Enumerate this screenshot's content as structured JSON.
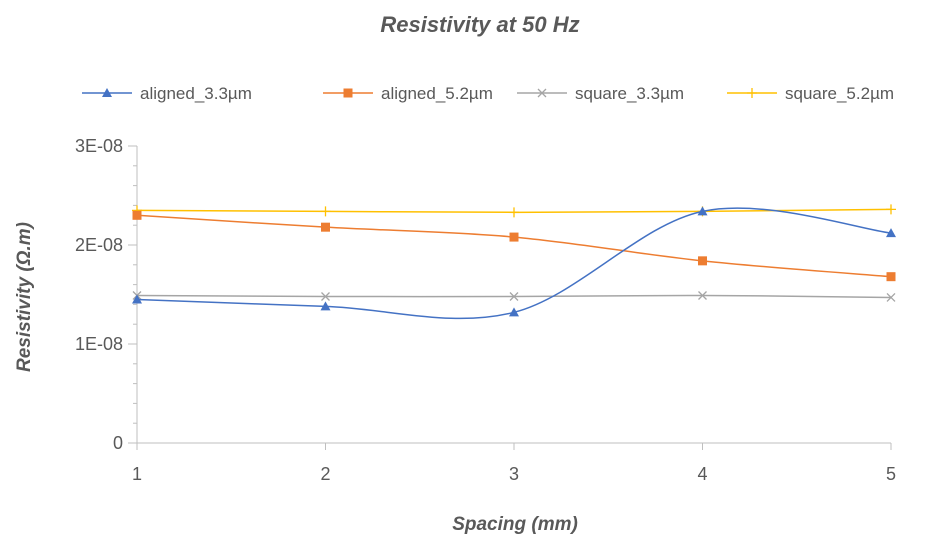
{
  "chart_data": {
    "type": "line",
    "title": "Resistivity at 50 Hz",
    "xlabel": "Spacing (mm)",
    "ylabel": "Resistivity (Ω.m)",
    "x": [
      1,
      2,
      3,
      4,
      5
    ],
    "x_tick_labels": [
      "1",
      "2",
      "3",
      "4",
      "5"
    ],
    "xlim": [
      1,
      5
    ],
    "ylim": [
      0,
      3e-08
    ],
    "y_ticks": [
      0,
      1e-08,
      2e-08,
      3e-08
    ],
    "y_tick_labels": [
      "0",
      "1E-08",
      "2E-08",
      "3E-08"
    ],
    "grid": false,
    "smooth": true,
    "legend_position": "top",
    "series": [
      {
        "name": "aligned_3.3µm",
        "marker": "triangle",
        "color": "#4472C4",
        "values": [
          1.45e-08,
          1.38e-08,
          1.32e-08,
          2.34e-08,
          2.12e-08
        ]
      },
      {
        "name": "aligned_5.2µm",
        "marker": "square",
        "color": "#ED7D31",
        "values": [
          2.3e-08,
          2.18e-08,
          2.08e-08,
          1.84e-08,
          1.68e-08
        ]
      },
      {
        "name": "square_3.3µm",
        "marker": "x",
        "color": "#A5A5A5",
        "values": [
          1.49e-08,
          1.48e-08,
          1.48e-08,
          1.49e-08,
          1.47e-08
        ]
      },
      {
        "name": "square_5.2µm",
        "marker": "plus",
        "color": "#FFC000",
        "values": [
          2.35e-08,
          2.34e-08,
          2.33e-08,
          2.34e-08,
          2.36e-08
        ]
      }
    ]
  }
}
